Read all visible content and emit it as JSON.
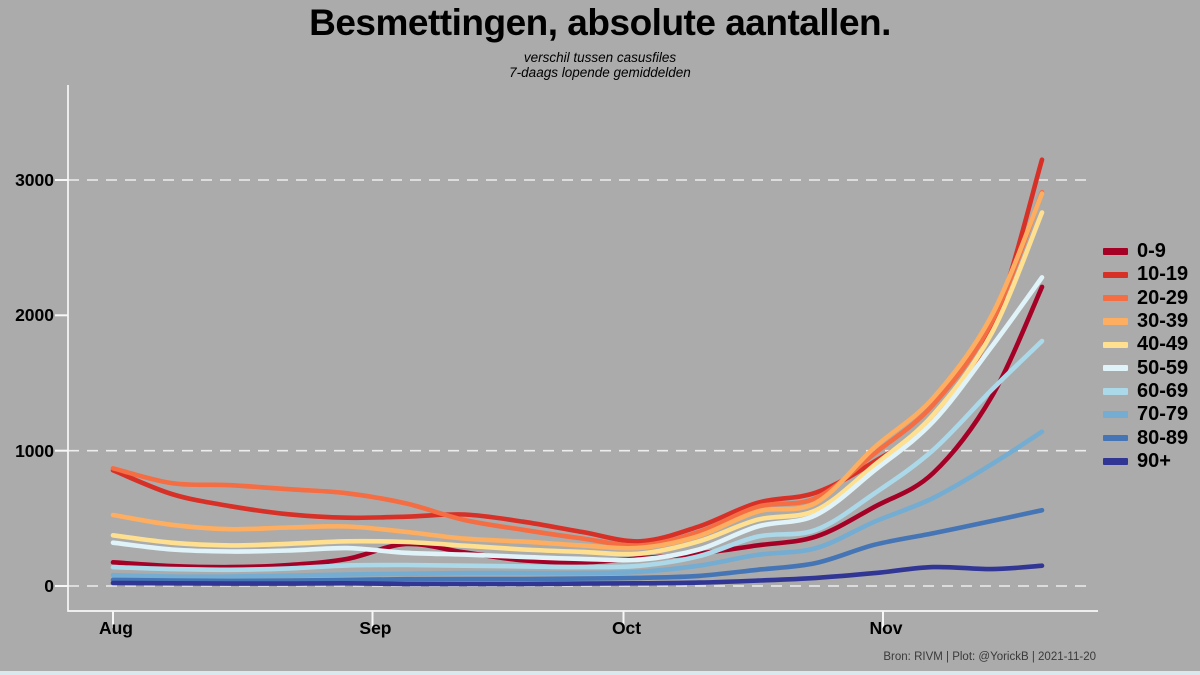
{
  "colors": {
    "background": "#ababab",
    "axis": "#f7f7f7",
    "grid": "#ececec",
    "text": "#000000",
    "caption_text": "#3a3a3a",
    "bottom_strip": "#d9e8ed"
  },
  "header": {
    "title": "Besmettingen, absolute aantallen.",
    "subtitle_line1": "verschil tussen casusfiles",
    "subtitle_line2": "7-daags lopende gemiddelden"
  },
  "footer": {
    "caption": "Bron: RIVM | Plot: @YorickB  |  2021-11-20"
  },
  "chart_data": {
    "type": "line",
    "title": "Besmettingen, absolute aantallen.",
    "subtitle": "verschil tussen casusfiles / 7-daags lopende gemiddelden",
    "legend_position": "right",
    "grid": "dashed-horizontal",
    "x_axis": {
      "tick_labels": [
        "Aug",
        "Sep",
        "Oct",
        "Nov"
      ],
      "tick_day_offsets": [
        0,
        31,
        61,
        92
      ],
      "start_date": "2021-08-01",
      "end_date": "2021-11-20"
    },
    "y_axis": {
      "ticks": [
        0,
        1000,
        2000,
        3000
      ],
      "gridline_values": [
        0,
        1000,
        3000
      ],
      "range": [
        0,
        3700
      ]
    },
    "sample_dates": [
      "2021-08-01",
      "2021-08-08",
      "2021-08-15",
      "2021-08-22",
      "2021-08-29",
      "2021-09-05",
      "2021-09-12",
      "2021-09-19",
      "2021-09-26",
      "2021-10-03",
      "2021-10-10",
      "2021-10-17",
      "2021-10-24",
      "2021-10-31",
      "2021-11-07",
      "2021-11-14",
      "2021-11-20"
    ],
    "sample_day_offsets": [
      0,
      7,
      14,
      21,
      28,
      35,
      42,
      49,
      56,
      63,
      70,
      77,
      84,
      91,
      98,
      105,
      111
    ],
    "series": [
      {
        "name": "0-9",
        "color": "#a50026",
        "values": [
          175,
          148,
          140,
          155,
          200,
          310,
          248,
          190,
          175,
          205,
          240,
          300,
          365,
          585,
          835,
          1400,
          2210
        ]
      },
      {
        "name": "10-19",
        "color": "#d73027",
        "values": [
          855,
          680,
          590,
          530,
          505,
          512,
          528,
          475,
          400,
          330,
          440,
          615,
          690,
          920,
          1230,
          1900,
          3150
        ]
      },
      {
        "name": "20-29",
        "color": "#f46d43",
        "values": [
          870,
          760,
          745,
          715,
          685,
          610,
          488,
          415,
          352,
          300,
          400,
          585,
          650,
          980,
          1340,
          1950,
          2910
        ]
      },
      {
        "name": "30-39",
        "color": "#fdae61",
        "values": [
          525,
          452,
          420,
          432,
          440,
          400,
          350,
          328,
          300,
          282,
          370,
          550,
          615,
          1025,
          1390,
          2000,
          2900
        ]
      },
      {
        "name": "40-49",
        "color": "#fee090",
        "values": [
          375,
          320,
          300,
          312,
          330,
          325,
          298,
          270,
          252,
          240,
          330,
          490,
          560,
          895,
          1265,
          1870,
          2760
        ]
      },
      {
        "name": "50-59",
        "color": "#e0f3f8",
        "values": [
          320,
          270,
          255,
          262,
          280,
          245,
          232,
          215,
          200,
          195,
          270,
          440,
          525,
          855,
          1215,
          1770,
          2280
        ]
      },
      {
        "name": "60-69",
        "color": "#abd9e9",
        "values": [
          140,
          125,
          120,
          130,
          152,
          155,
          150,
          145,
          140,
          150,
          220,
          365,
          415,
          685,
          1005,
          1450,
          1810
        ]
      },
      {
        "name": "70-79",
        "color": "#74add1",
        "values": [
          80,
          70,
          70,
          76,
          85,
          90,
          95,
          95,
          95,
          105,
          150,
          230,
          280,
          475,
          650,
          900,
          1140
        ]
      },
      {
        "name": "80-89",
        "color": "#4575b4",
        "values": [
          45,
          40,
          38,
          40,
          45,
          50,
          52,
          52,
          55,
          60,
          75,
          120,
          170,
          305,
          390,
          480,
          560
        ]
      },
      {
        "name": "90+",
        "color": "#313695",
        "values": [
          22,
          20,
          18,
          18,
          20,
          15,
          15,
          15,
          18,
          20,
          25,
          40,
          60,
          95,
          140,
          125,
          150
        ]
      }
    ]
  }
}
